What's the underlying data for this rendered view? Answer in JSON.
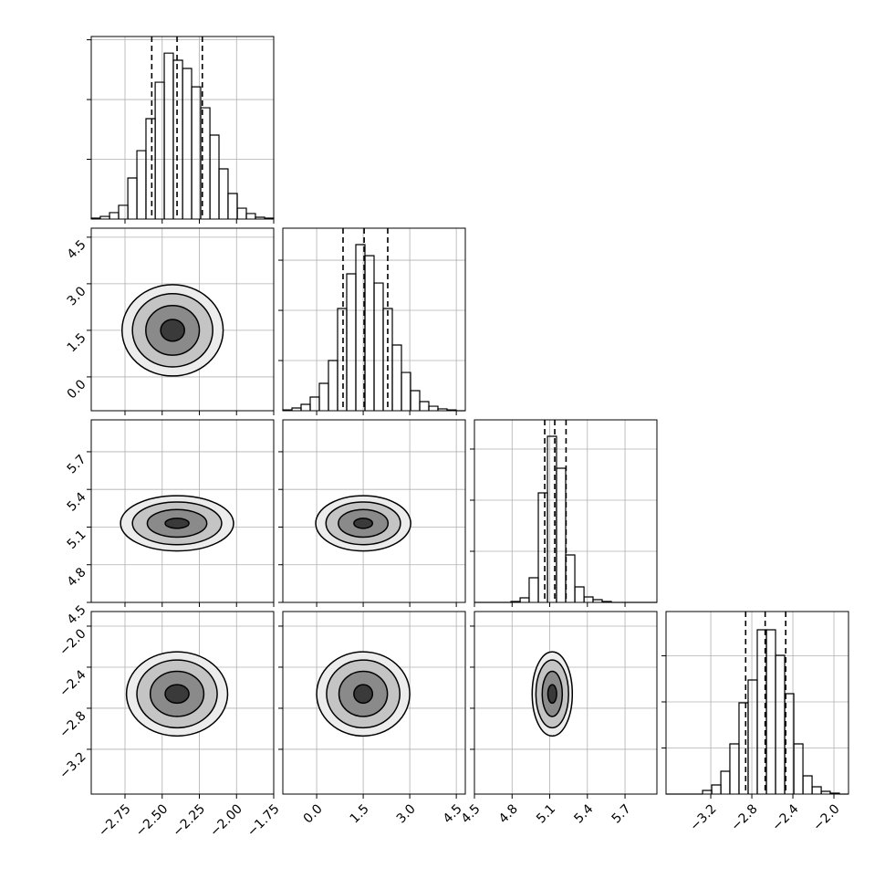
{
  "chart_data": {
    "type": "corner",
    "grid": true,
    "hist_ytick_labels": false,
    "color": "#000000",
    "parameters": [
      {
        "lim": [
          -2.977,
          -1.75
        ],
        "ticks": [
          {
            "value": -2.75,
            "label": "−2.75"
          },
          {
            "value": -2.5,
            "label": "−2.50"
          },
          {
            "value": -2.25,
            "label": "−2.25"
          },
          {
            "value": -2.0,
            "label": "−2.00"
          },
          {
            "value": -1.75,
            "label": "−1.75"
          }
        ],
        "hist": {
          "bins": [
            -2.977,
            -2.916,
            -2.854,
            -2.793,
            -2.731,
            -2.67,
            -2.609,
            -2.547,
            -2.486,
            -2.425,
            -2.363,
            -2.302,
            -2.241,
            -2.179,
            -2.118,
            -2.057,
            -1.995,
            -1.934,
            -1.873,
            -1.811,
            -1.75
          ],
          "counts": [
            6,
            18,
            43,
            92,
            275,
            458,
            672,
            916,
            1111,
            1063,
            1008,
            885,
            745,
            562,
            336,
            171,
            73,
            37,
            12,
            6
          ],
          "ylim": [
            0,
            1222
          ],
          "yticks": [
            400,
            800,
            1200
          ],
          "quantiles": [
            -2.57,
            -2.4,
            -2.23
          ]
        }
      },
      {
        "lim": [
          -1.09,
          4.79
        ],
        "ticks": [
          {
            "value": 0,
            "label": "0.0"
          },
          {
            "value": 1.5,
            "label": "1.5"
          },
          {
            "value": 3,
            "label": "3.0"
          },
          {
            "value": 4.5,
            "label": "4.5"
          }
        ],
        "hist": {
          "bins": [
            -1.09,
            -0.796,
            -0.502,
            -0.208,
            0.086,
            0.38,
            0.674,
            0.968,
            1.262,
            1.556,
            1.85,
            2.144,
            2.438,
            2.732,
            3.026,
            3.32,
            3.614,
            3.908,
            4.202,
            4.496,
            4.79
          ],
          "counts": [
            7,
            22,
            51,
            109,
            218,
            400,
            815,
            1091,
            1324,
            1236,
            1018,
            815,
            524,
            305,
            160,
            73,
            36,
            15,
            7,
            0
          ],
          "ylim": [
            0,
            1455
          ],
          "yticks": [
            400,
            800,
            1200
          ],
          "quantiles": [
            0.85,
            1.53,
            2.29
          ]
        }
      },
      {
        "lim": [
          4.5,
          5.954
        ],
        "ticks": [
          {
            "value": 4.5,
            "label": "4.5"
          },
          {
            "value": 4.8,
            "label": "4.8"
          },
          {
            "value": 5.1,
            "label": "5.1"
          },
          {
            "value": 5.4,
            "label": "5.4"
          },
          {
            "value": 5.7,
            "label": "5.7"
          }
        ],
        "hist": {
          "bins": [
            4.5,
            4.573,
            4.645,
            4.718,
            4.791,
            4.864,
            4.936,
            5.009,
            5.082,
            5.154,
            5.227,
            5.3,
            5.373,
            5.445,
            5.518,
            5.591,
            5.664,
            5.736,
            5.809,
            5.882,
            5.954
          ],
          "counts": [
            0,
            0,
            0,
            0,
            18,
            89,
            482,
            2143,
            3250,
            2625,
            929,
            304,
            107,
            54,
            18,
            0,
            0,
            0,
            0,
            0
          ],
          "ylim": [
            0,
            3571
          ],
          "yticks": [
            1000,
            2000,
            3000
          ],
          "quantiles": [
            5.06,
            5.14,
            5.23
          ]
        }
      },
      {
        "lim": [
          -3.636,
          -1.858
        ],
        "ticks": [
          {
            "value": -3.2,
            "label": "−3.2"
          },
          {
            "value": -2.8,
            "label": "−2.8"
          },
          {
            "value": -2.4,
            "label": "−2.4"
          },
          {
            "value": -2.0,
            "label": "−2.0"
          }
        ],
        "hist": {
          "bins": [
            -3.636,
            -3.547,
            -3.458,
            -3.369,
            -3.28,
            -3.191,
            -3.102,
            -3.014,
            -2.925,
            -2.836,
            -2.747,
            -2.658,
            -2.569,
            -2.48,
            -2.391,
            -2.302,
            -2.213,
            -2.124,
            -2.036,
            -1.947,
            -1.858
          ],
          "counts": [
            0,
            0,
            0,
            0,
            79,
            198,
            495,
            1089,
            1980,
            2475,
            3564,
            3564,
            3010,
            2178,
            1089,
            396,
            158,
            59,
            20,
            0
          ],
          "ylim": [
            0,
            3960
          ],
          "yticks": [
            1000,
            2000,
            3000
          ],
          "quantiles": [
            -2.86,
            -2.67,
            -2.47
          ]
        }
      }
    ],
    "pairs": [
      [
        {
          "center": [
            -2.43,
            1.5
          ],
          "contour_x_radii": [
            0.34,
            0.27,
            0.18,
            0.08
          ],
          "contour_y_radii": [
            1.47,
            1.18,
            0.8,
            0.35
          ]
        }
      ],
      [
        {
          "center": [
            -2.4,
            5.13
          ],
          "contour_x_radii": [
            0.38,
            0.3,
            0.2,
            0.08
          ],
          "contour_y_radii": [
            0.22,
            0.17,
            0.11,
            0.04
          ]
        },
        {
          "center": [
            1.5,
            5.13
          ],
          "contour_x_radii": [
            1.53,
            1.2,
            0.8,
            0.3
          ],
          "contour_y_radii": [
            0.22,
            0.17,
            0.11,
            0.04
          ]
        }
      ],
      [
        {
          "center": [
            -2.4,
            -2.66
          ],
          "contour_x_radii": [
            0.34,
            0.27,
            0.18,
            0.08
          ],
          "contour_y_radii": [
            0.41,
            0.33,
            0.22,
            0.09
          ]
        },
        {
          "center": [
            1.5,
            -2.66
          ],
          "contour_x_radii": [
            1.5,
            1.18,
            0.78,
            0.3
          ],
          "contour_y_radii": [
            0.41,
            0.33,
            0.22,
            0.09
          ]
        },
        {
          "center": [
            5.12,
            -2.66
          ],
          "contour_x_radii": [
            0.16,
            0.13,
            0.08,
            0.035
          ],
          "contour_y_radii": [
            0.41,
            0.33,
            0.22,
            0.09
          ]
        }
      ]
    ]
  }
}
